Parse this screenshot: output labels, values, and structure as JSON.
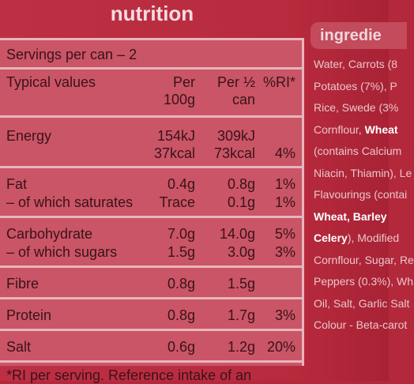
{
  "nutrition": {
    "title": "nutrition",
    "servings": "Servings per can – 2",
    "header": {
      "name": "Typical values",
      "per100g": [
        "Per",
        "100g"
      ],
      "perServing": [
        "Per ½",
        "can"
      ],
      "ri": "%RI*"
    },
    "groups": [
      [
        {
          "name": "Energy",
          "per100g": [
            "154kJ",
            "37kcal"
          ],
          "perServing": [
            "309kJ",
            "73kcal"
          ],
          "ri": "4%"
        }
      ],
      [
        {
          "name": "Fat",
          "per100g": "0.4g",
          "perServing": "0.8g",
          "ri": "1%"
        },
        {
          "name": "– of which saturates",
          "per100g": "Trace",
          "perServing": "0.1g",
          "ri": "1%"
        }
      ],
      [
        {
          "name": "Carbohydrate",
          "per100g": "7.0g",
          "perServing": "14.0g",
          "ri": "5%"
        },
        {
          "name": "– of which sugars",
          "per100g": "1.5g",
          "perServing": "3.0g",
          "ri": "3%"
        }
      ],
      [
        {
          "name": "Fibre",
          "per100g": "0.8g",
          "perServing": "1.5g"
        }
      ],
      [
        {
          "name": "Protein",
          "per100g": "0.8g",
          "perServing": "1.7g",
          "ri": "3%"
        }
      ],
      [
        {
          "name": "Salt",
          "per100g": "0.6g",
          "perServing": "1.2g",
          "ri": "20%"
        }
      ]
    ],
    "footnote": "*RI per serving. Reference intake of an"
  },
  "ingredients": {
    "title": "ingredie",
    "lines": [
      [
        {
          "text": "Water, Carrots (8"
        }
      ],
      [
        {
          "text": "Potatoes (7%), P"
        }
      ],
      [
        {
          "text": "Rice, Swede (3%"
        }
      ],
      [
        {
          "text": "Cornflour, "
        },
        {
          "text": "Wheat",
          "bold": true
        }
      ],
      [
        {
          "text": "(contains Calcium"
        }
      ],
      [
        {
          "text": "Niacin, Thiamin), Le"
        }
      ],
      [
        {
          "text": "Flavourings (contai"
        }
      ],
      [
        {
          "text": "Wheat, Barley",
          "bold": true
        }
      ],
      [
        {
          "text": "Celery",
          "bold": true
        },
        {
          "text": "), Modified"
        }
      ],
      [
        {
          "text": "Cornflour, Sugar, Re"
        }
      ],
      [
        {
          "text": "Peppers (0.3%), Wh"
        }
      ],
      [
        {
          "text": "Oil, Salt, Garlic Salt"
        }
      ],
      [
        {
          "text": "Colour - Beta-carot"
        }
      ]
    ]
  }
}
